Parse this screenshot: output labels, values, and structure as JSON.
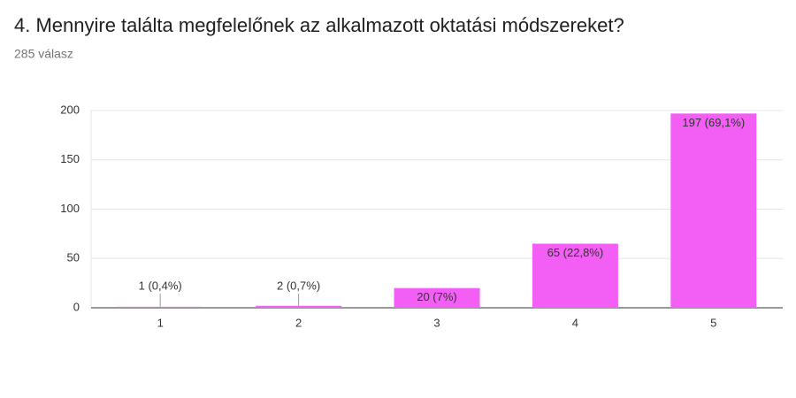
{
  "chart_data": {
    "type": "bar",
    "title": "4. Mennyire találta megfelelőnek az alkalmazott oktatási módszereket?",
    "subtitle": "285 válasz",
    "categories": [
      "1",
      "2",
      "3",
      "4",
      "5"
    ],
    "values": [
      1,
      2,
      20,
      65,
      197
    ],
    "value_labels": [
      "1 (0,4%)",
      "2 (0,7%)",
      "20 (7%)",
      "65 (22,8%)",
      "197 (69,1%)"
    ],
    "color": "#f35ef5",
    "ylim": [
      0,
      200
    ],
    "yticks": [
      0,
      50,
      100,
      150,
      200
    ],
    "grid": true
  }
}
